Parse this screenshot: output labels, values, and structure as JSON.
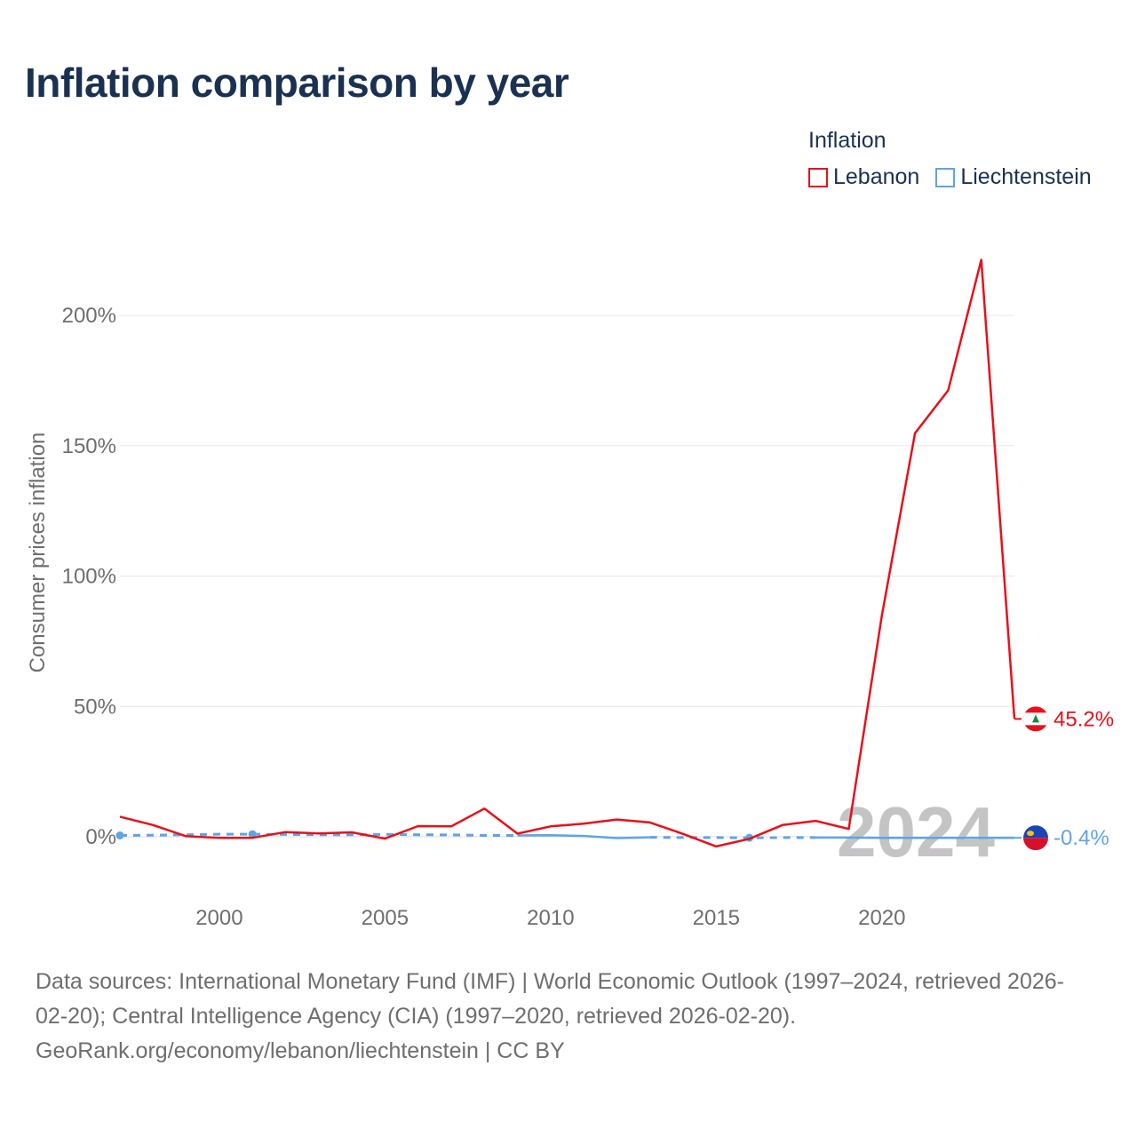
{
  "chart_data": {
    "type": "line",
    "title": "Inflation comparison by year",
    "ylabel": "Consumer prices inflation",
    "xlabel": "",
    "ylim": [
      -25,
      225
    ],
    "xlim": [
      1997,
      2024
    ],
    "yticks": [
      0,
      50,
      100,
      150,
      200
    ],
    "ytick_labels": [
      "0%",
      "50%",
      "100%",
      "150%",
      "200%"
    ],
    "xticks": [
      2000,
      2005,
      2010,
      2015,
      2020
    ],
    "xtick_labels": [
      "2000",
      "2005",
      "2010",
      "2015",
      "2020"
    ],
    "legend_title": "Inflation",
    "legend_position": "top-right",
    "watermark_year": "2024",
    "series": [
      {
        "name": "Lebanon",
        "color": "#e8101a",
        "style": "solid",
        "x": [
          1997,
          1998,
          1999,
          2000,
          2001,
          2002,
          2003,
          2004,
          2005,
          2006,
          2007,
          2008,
          2009,
          2010,
          2011,
          2012,
          2013,
          2014,
          2015,
          2016,
          2017,
          2018,
          2019,
          2020,
          2021,
          2022,
          2023,
          2024
        ],
        "values": [
          7.7,
          4.5,
          0.2,
          -0.4,
          -0.4,
          1.8,
          1.3,
          1.7,
          -0.7,
          4.1,
          4.0,
          10.8,
          1.2,
          4.0,
          5.0,
          6.6,
          5.5,
          1.1,
          -3.7,
          -0.8,
          4.5,
          6.1,
          3.0,
          84.9,
          154.8,
          171.2,
          221.3,
          45.2
        ],
        "end_label": "45.2%",
        "flag": "lebanon-flag-icon"
      },
      {
        "name": "Liechtenstein",
        "color": "#5ea4e8",
        "style": "mixed",
        "x": [
          1997,
          1998,
          1999,
          2000,
          2001,
          2002,
          2003,
          2004,
          2005,
          2006,
          2007,
          2008,
          2009,
          2010,
          2011,
          2012,
          2013,
          2014,
          2015,
          2016,
          2017,
          2018,
          2019,
          2020,
          2021,
          2022,
          2023,
          2024
        ],
        "values": [
          0.5,
          0.6,
          0.8,
          1.0,
          1.0,
          0.9,
          0.8,
          0.8,
          0.9,
          0.8,
          0.7,
          0.5,
          0.5,
          0.6,
          0.3,
          -0.5,
          -0.2,
          -0.3,
          -0.3,
          -0.4,
          -0.3,
          -0.3,
          -0.3,
          -0.4,
          -0.4,
          -0.4,
          -0.4,
          -0.4
        ],
        "solid_years": [
          [
            2009,
            2013
          ],
          [
            2018,
            2024
          ]
        ],
        "dashed_years": [
          [
            1997,
            2009
          ],
          [
            2013,
            2018
          ]
        ],
        "marker_years": [
          1997,
          2001,
          2016
        ],
        "end_label": "-0.4%",
        "flag": "liechtenstein-flag-icon"
      }
    ]
  },
  "source": {
    "line1": "Data sources: International Monetary Fund (IMF) | World Economic Outlook (1997–2024, retrieved 2026-",
    "line2": "02-20); Central Intelligence Agency (CIA) (1997–2020, retrieved 2026-02-20).",
    "line3": "GeoRank.org/economy/lebanon/liechtenstein | CC BY"
  }
}
